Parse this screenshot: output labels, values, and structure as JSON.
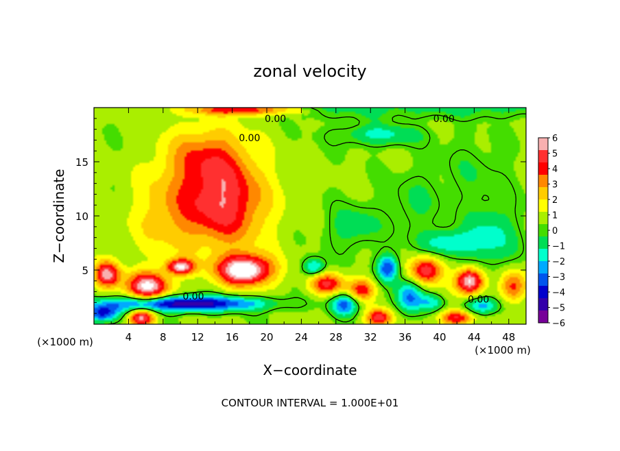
{
  "chart_data": {
    "type": "heatmap",
    "title": "zonal velocity",
    "xlabel": "X−coordinate",
    "ylabel": "Z−coordinate",
    "x_unit_left": "(×1000 m)",
    "x_unit_right": "(×1000 m)",
    "footer": "CONTOUR INTERVAL = 1.000E+01",
    "xlim": [
      0,
      50
    ],
    "ylim": [
      0,
      20
    ],
    "x_ticks": [
      4,
      8,
      12,
      16,
      20,
      24,
      28,
      32,
      36,
      40,
      44,
      48
    ],
    "x_tick_labels": [
      "4",
      "8",
      "12",
      "16",
      "20",
      "24",
      "28",
      "32",
      "36",
      "40",
      "44",
      "48"
    ],
    "y_ticks": [
      5,
      10,
      15
    ],
    "y_tick_labels": [
      "5",
      "10",
      "15"
    ],
    "colorbar": {
      "min": -6,
      "max": 6,
      "ticks": [
        6,
        5,
        4,
        3,
        2,
        1,
        0,
        -1,
        -2,
        -3,
        -4,
        -5,
        -6
      ],
      "tick_labels": [
        "6",
        "5",
        "4",
        "3",
        "2",
        "1",
        "0",
        "−1",
        "−2",
        "−3",
        "−4",
        "−5",
        "−6"
      ],
      "colors": [
        "#f8b0b0",
        "#ff3030",
        "#ff0000",
        "#ff8800",
        "#ffcc00",
        "#ffff00",
        "#aaee00",
        "#44dd00",
        "#00dd55",
        "#00ffcc",
        "#00aaff",
        "#0055ee",
        "#0000cc",
        "#3300aa",
        "#770099"
      ],
      "over_color": "#ffffff",
      "under_color": "#ffffff"
    },
    "contour_labels": [
      {
        "text": "0.00",
        "x": 21.0,
        "y": 19.0
      },
      {
        "text": "0.00",
        "x": 40.5,
        "y": 19.0
      },
      {
        "text": "0.00",
        "x": 18.0,
        "y": 17.2
      },
      {
        "text": "0.00",
        "x": 11.5,
        "y": 2.6
      },
      {
        "text": "0.00",
        "x": 44.5,
        "y": 2.3
      }
    ],
    "field_description": "2-D zonal velocity field; u(x,z) sampled on a grid; main positive jet 8-22 km, z 2-16 km",
    "features": [
      {
        "kind": "positive",
        "x": 15.0,
        "y": 11.0,
        "amp": 4.3,
        "sx": 5.0,
        "sy": 4.0
      },
      {
        "kind": "positive",
        "x": 13.0,
        "y": 15.5,
        "amp": 2.6,
        "sx": 5.0,
        "sy": 3.0
      },
      {
        "kind": "positive",
        "x": 8.0,
        "y": 10.0,
        "amp": 1.6,
        "sx": 4.0,
        "sy": 4.0
      },
      {
        "kind": "positive",
        "x": 17.5,
        "y": 5.0,
        "amp": 6.5,
        "sx": 3.2,
        "sy": 1.4
      },
      {
        "kind": "positive",
        "x": 10.0,
        "y": 5.3,
        "amp": 5.2,
        "sx": 1.6,
        "sy": 0.7
      },
      {
        "kind": "positive",
        "x": 1.5,
        "y": 4.6,
        "amp": 5.0,
        "sx": 1.5,
        "sy": 1.2
      },
      {
        "kind": "positive",
        "x": 6.2,
        "y": 3.5,
        "amp": 5.5,
        "sx": 2.5,
        "sy": 1.3
      },
      {
        "kind": "positive",
        "x": 5.5,
        "y": 0.6,
        "amp": 5.0,
        "sx": 1.5,
        "sy": 0.8
      },
      {
        "kind": "positive",
        "x": 17.0,
        "y": 19.8,
        "amp": 3.5,
        "sx": 6.0,
        "sy": 0.5
      },
      {
        "kind": "positive",
        "x": 38.5,
        "y": 5.0,
        "amp": 4.5,
        "sx": 1.8,
        "sy": 1.3
      },
      {
        "kind": "positive",
        "x": 43.5,
        "y": 4.0,
        "amp": 6.0,
        "sx": 1.6,
        "sy": 1.2
      },
      {
        "kind": "positive",
        "x": 27.0,
        "y": 3.7,
        "amp": 4.0,
        "sx": 2.0,
        "sy": 1.0
      },
      {
        "kind": "positive",
        "x": 31.0,
        "y": 3.2,
        "amp": 3.5,
        "sx": 1.5,
        "sy": 1.0
      },
      {
        "kind": "positive",
        "x": 33.0,
        "y": 0.6,
        "amp": 4.5,
        "sx": 1.5,
        "sy": 0.8
      },
      {
        "kind": "positive",
        "x": 42.0,
        "y": 0.6,
        "amp": 4.0,
        "sx": 2.0,
        "sy": 0.7
      },
      {
        "kind": "positive",
        "x": 48.5,
        "y": 3.5,
        "amp": 3.5,
        "sx": 1.5,
        "sy": 1.5
      },
      {
        "kind": "negative",
        "x": 10.5,
        "y": 1.9,
        "amp": -5.5,
        "sx": 9.0,
        "sy": 0.7
      },
      {
        "kind": "negative",
        "x": 1.0,
        "y": 1.0,
        "amp": -4.5,
        "sx": 2.0,
        "sy": 0.8
      },
      {
        "kind": "negative",
        "x": 34.0,
        "y": 5.2,
        "amp": -4.0,
        "sx": 1.2,
        "sy": 1.2
      },
      {
        "kind": "negative",
        "x": 36.5,
        "y": 2.5,
        "amp": -3.5,
        "sx": 1.5,
        "sy": 1.5
      },
      {
        "kind": "negative",
        "x": 29.0,
        "y": 1.8,
        "amp": -3.5,
        "sx": 1.5,
        "sy": 1.0
      },
      {
        "kind": "negative",
        "x": 25.5,
        "y": 5.3,
        "amp": -3.0,
        "sx": 1.2,
        "sy": 0.8
      },
      {
        "kind": "negative",
        "x": 30.0,
        "y": 9.0,
        "amp": -1.5,
        "sx": 3.0,
        "sy": 2.0
      },
      {
        "kind": "negative",
        "x": 33.0,
        "y": 17.5,
        "amp": -2.0,
        "sx": 5.0,
        "sy": 1.0
      },
      {
        "kind": "negative",
        "x": 41.0,
        "y": 7.5,
        "amp": -2.5,
        "sx": 3.0,
        "sy": 1.2
      },
      {
        "kind": "negative",
        "x": 46.0,
        "y": 8.0,
        "amp": -2.0,
        "sx": 3.0,
        "sy": 3.0
      },
      {
        "kind": "negative",
        "x": 44.0,
        "y": 14.0,
        "amp": -0.8,
        "sx": 4.0,
        "sy": 3.0
      },
      {
        "kind": "negative",
        "x": 37.0,
        "y": 11.0,
        "amp": -1.0,
        "sx": 3.0,
        "sy": 3.0
      },
      {
        "kind": "negative",
        "x": 45.0,
        "y": 1.7,
        "amp": -3.0,
        "sx": 2.0,
        "sy": 0.8
      },
      {
        "kind": "negative",
        "x": 39.0,
        "y": 2.0,
        "amp": -2.0,
        "sx": 1.5,
        "sy": 0.8
      }
    ]
  }
}
